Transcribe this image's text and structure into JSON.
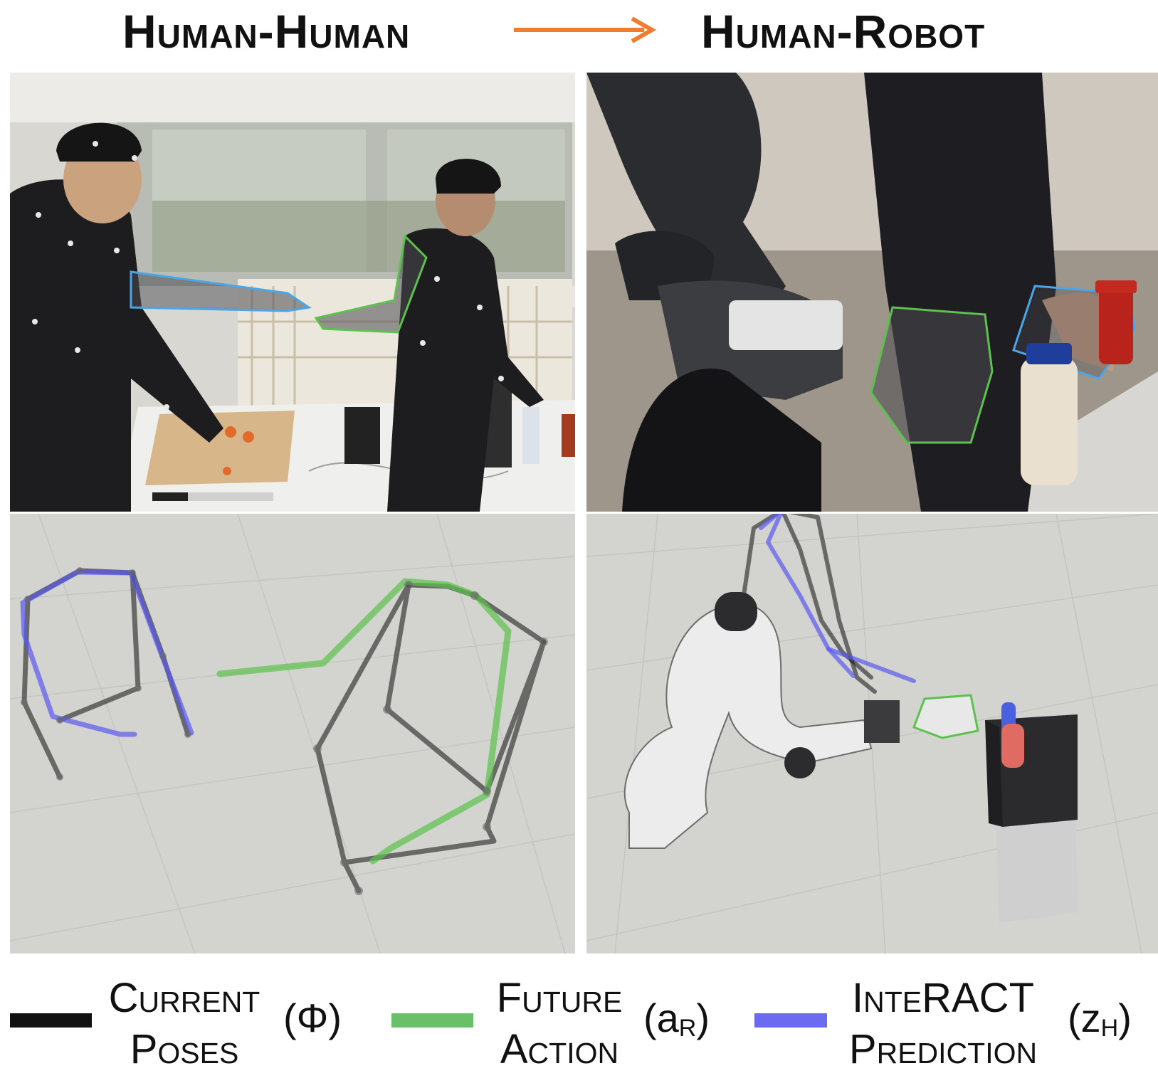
{
  "header": {
    "left_title": "Human-Human",
    "right_title": "Human-Robot",
    "arrow_color": "#ed7d31"
  },
  "panels": {
    "top_left": {
      "icon": "motion-capture-kitchen-photo"
    },
    "top_right": {
      "icon": "robot-handover-photo"
    },
    "bottom_left": {
      "icon": "skeleton-visualization"
    },
    "bottom_right": {
      "icon": "robot-simulation-visualization"
    }
  },
  "colors": {
    "current": "#111111",
    "future": "#6abf69",
    "interact": "#6b6bf0",
    "red_object": "#e06b62",
    "blue_object": "#4a60e0"
  },
  "legend": {
    "items": [
      {
        "line1": "Current",
        "line2": "Poses",
        "symbol": "(Φ)",
        "symbol_sub": ""
      },
      {
        "line1": "Future",
        "line2": "Action",
        "symbol": "(a",
        "symbol_sub": "R"
      },
      {
        "line1": "InteRACT",
        "line2": "Prediction",
        "symbol": "(z",
        "symbol_sub": "H"
      }
    ]
  }
}
